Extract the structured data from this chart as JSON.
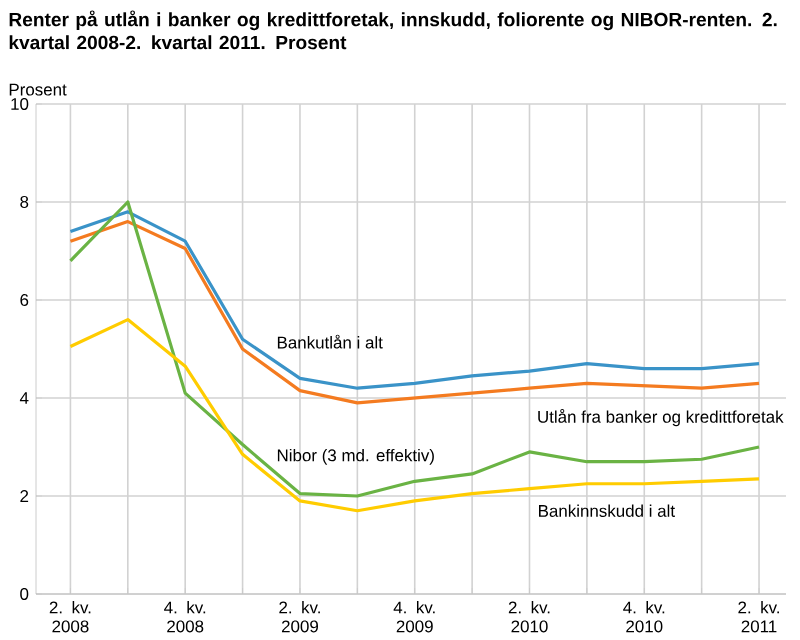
{
  "chart_data": {
    "type": "line",
    "title": "Renter på utlån i banker og kredittforetak, innskudd, foliorente og NIBOR-renten. 2. kvartal 2008-2. kvartal 2011. Prosent",
    "ylabel": "Prosent",
    "categories": [
      "2. kv. 2008",
      null,
      "4. kv. 2008",
      null,
      "2. kv. 2009",
      null,
      "4. kv. 2009",
      null,
      "2. kv. 2010",
      null,
      "4. kv. 2010",
      null,
      "2. kv. 2011"
    ],
    "series": [
      {
        "name": "Bankutlån i alt",
        "color": "#3a93c8",
        "values": [
          7.4,
          7.8,
          7.2,
          5.2,
          4.4,
          4.2,
          4.3,
          4.45,
          4.55,
          4.7,
          4.6,
          4.6,
          4.7
        ]
      },
      {
        "name": "Utlån fra banker og kredittforetak",
        "color": "#f47b20",
        "values": [
          7.2,
          7.6,
          7.05,
          5.0,
          4.15,
          3.9,
          4.0,
          4.1,
          4.2,
          4.3,
          4.25,
          4.2,
          4.3
        ]
      },
      {
        "name": "Nibor (3 md. effektiv)",
        "color": "#6ab344",
        "values": [
          6.8,
          8.0,
          4.1,
          3.05,
          2.05,
          2.0,
          2.3,
          2.45,
          2.9,
          2.7,
          2.7,
          2.75,
          3.0
        ]
      },
      {
        "name": "Bankinnskudd i alt",
        "color": "#ffcc00",
        "values": [
          5.05,
          5.6,
          4.65,
          2.85,
          1.9,
          1.7,
          1.9,
          2.05,
          2.15,
          2.25,
          2.25,
          2.3,
          2.35
        ]
      }
    ],
    "ylim": [
      0,
      10
    ],
    "yticks": [
      0,
      2,
      4,
      6,
      8,
      10
    ],
    "grid": true,
    "legend": false,
    "marker": "none",
    "line_style": "solid"
  }
}
